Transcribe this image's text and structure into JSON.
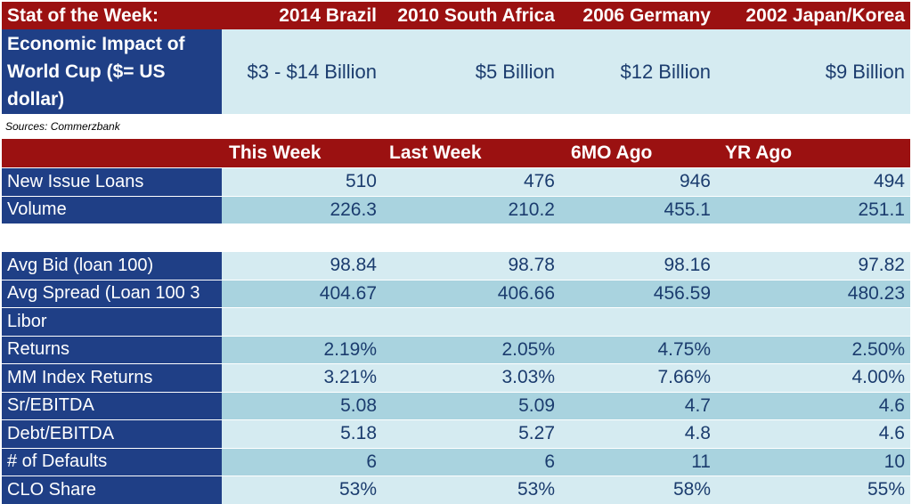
{
  "stat": {
    "header": [
      "Stat of the Week:",
      "2014 Brazil",
      "2010 South Africa",
      "2006 Germany",
      "2002 Japan/Korea"
    ],
    "label_lines": [
      "Economic Impact of",
      "World Cup  ($= US",
      "dollar)"
    ],
    "values": [
      "$3  - $14 Billion",
      "$5 Billion",
      "$12 Billion",
      "$9 Billion"
    ],
    "source": "Sources: Commerzbank"
  },
  "loans": {
    "header": [
      "",
      "This Week",
      "Last Week",
      "6MO Ago",
      "YR Ago"
    ],
    "group1": [
      {
        "label": "New Issue Loans",
        "values": [
          "510",
          "476",
          "946",
          "494"
        ]
      },
      {
        "label": "Volume",
        "values": [
          "226.3",
          "210.2",
          "455.1",
          "251.1"
        ]
      }
    ],
    "group2": [
      {
        "label": "Avg Bid (loan 100)",
        "values": [
          "98.84",
          "98.78",
          "98.16",
          "97.82"
        ]
      },
      {
        "label": "Avg Spread (Loan 100 3",
        "values": [
          "404.67",
          "406.66",
          "456.59",
          "480.23"
        ]
      },
      {
        "label": "Libor",
        "values": [
          "",
          "",
          "",
          ""
        ]
      },
      {
        "label": "Returns",
        "values": [
          "2.19%",
          "2.05%",
          "4.75%",
          "2.50%"
        ]
      },
      {
        "label": "MM Index Returns",
        "values": [
          "3.21%",
          "3.03%",
          "7.66%",
          "4.00%"
        ]
      },
      {
        "label": "Sr/EBITDA",
        "values": [
          "5.08",
          "5.09",
          "4.7",
          "4.6"
        ]
      },
      {
        "label": "Debt/EBITDA",
        "values": [
          "5.18",
          "5.27",
          "4.8",
          "4.6"
        ]
      },
      {
        "label": "# of Defaults",
        "values": [
          "6",
          "6",
          "11",
          "10"
        ]
      },
      {
        "label": "CLO Share",
        "values": [
          "53%",
          "53%",
          "58%",
          "55%"
        ]
      }
    ]
  }
}
